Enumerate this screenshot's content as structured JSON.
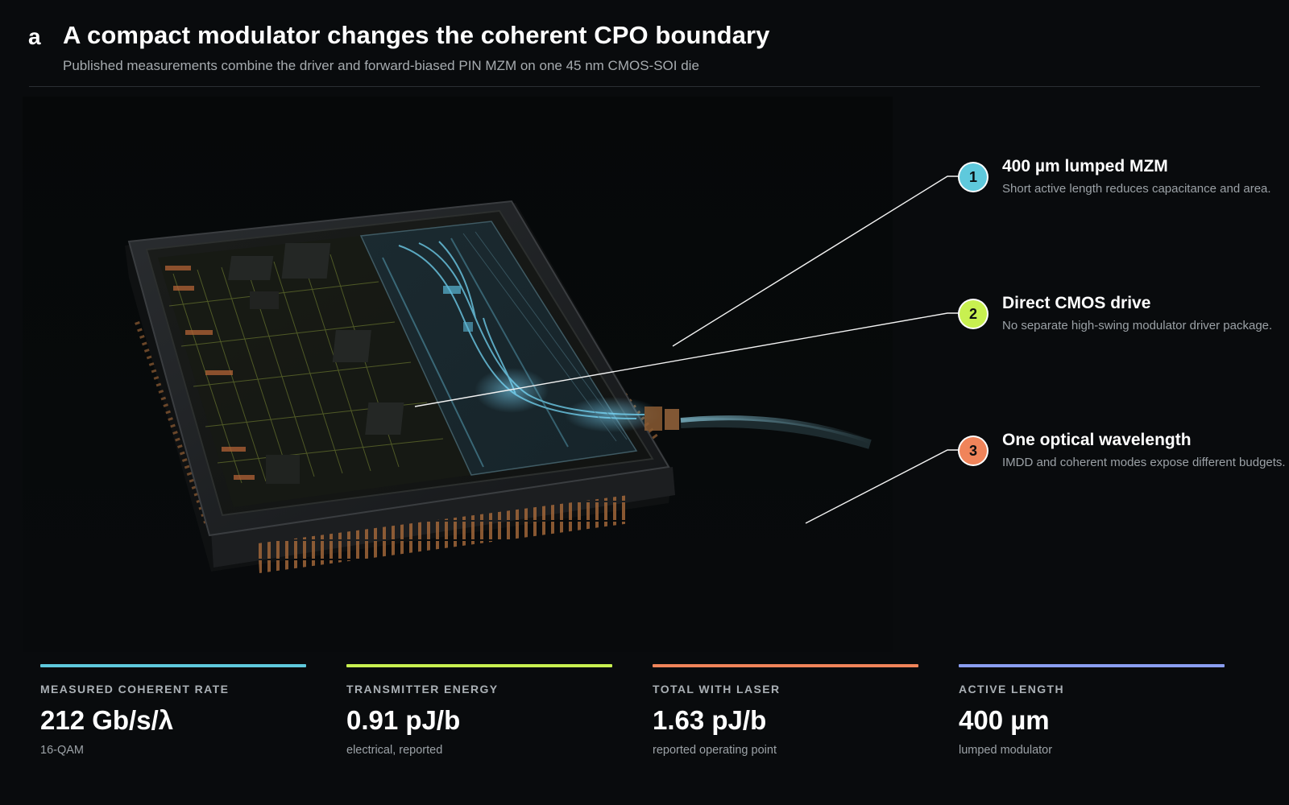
{
  "header": {
    "panel_letter": "a",
    "title": "A compact modulator changes the coherent CPO boundary",
    "subtitle": "Published measurements combine the driver and forward-biased PIN MZM on one 45 nm CMOS-SOI die"
  },
  "colors": {
    "cyan": "#5fc9dc",
    "lime": "#c8f050",
    "orange": "#f0845a",
    "periwinkle": "#8a9ef0",
    "background": "#090b0d"
  },
  "figure": {
    "image": "chip-package-render",
    "icons": [
      "chip-package-icon",
      "optical-fiber-icon",
      "modulator-waveguide-icon"
    ]
  },
  "callouts": [
    {
      "number": "1",
      "title": "400 µm lumped MZM",
      "description": "Short active length reduces capacitance and area.",
      "color": "#5fc9dc"
    },
    {
      "number": "2",
      "title": "Direct CMOS drive",
      "description": "No separate high-swing modulator driver package.",
      "color": "#c8f050"
    },
    {
      "number": "3",
      "title": "One optical wavelength",
      "description": "IMDD and coherent modes expose different budgets.",
      "color": "#f0845a"
    }
  ],
  "stats": [
    {
      "label": "MEASURED COHERENT RATE",
      "value": "212 Gb/s/λ",
      "note": "16-QAM",
      "color": "#5fc9dc"
    },
    {
      "label": "TRANSMITTER ENERGY",
      "value": "0.91 pJ/b",
      "note": "electrical, reported",
      "color": "#c8f050"
    },
    {
      "label": "TOTAL WITH LASER",
      "value": "1.63 pJ/b",
      "note": "reported operating point",
      "color": "#f0845a"
    },
    {
      "label": "ACTIVE LENGTH",
      "value": "400 µm",
      "note": "lumped modulator",
      "color": "#8a9ef0"
    }
  ]
}
